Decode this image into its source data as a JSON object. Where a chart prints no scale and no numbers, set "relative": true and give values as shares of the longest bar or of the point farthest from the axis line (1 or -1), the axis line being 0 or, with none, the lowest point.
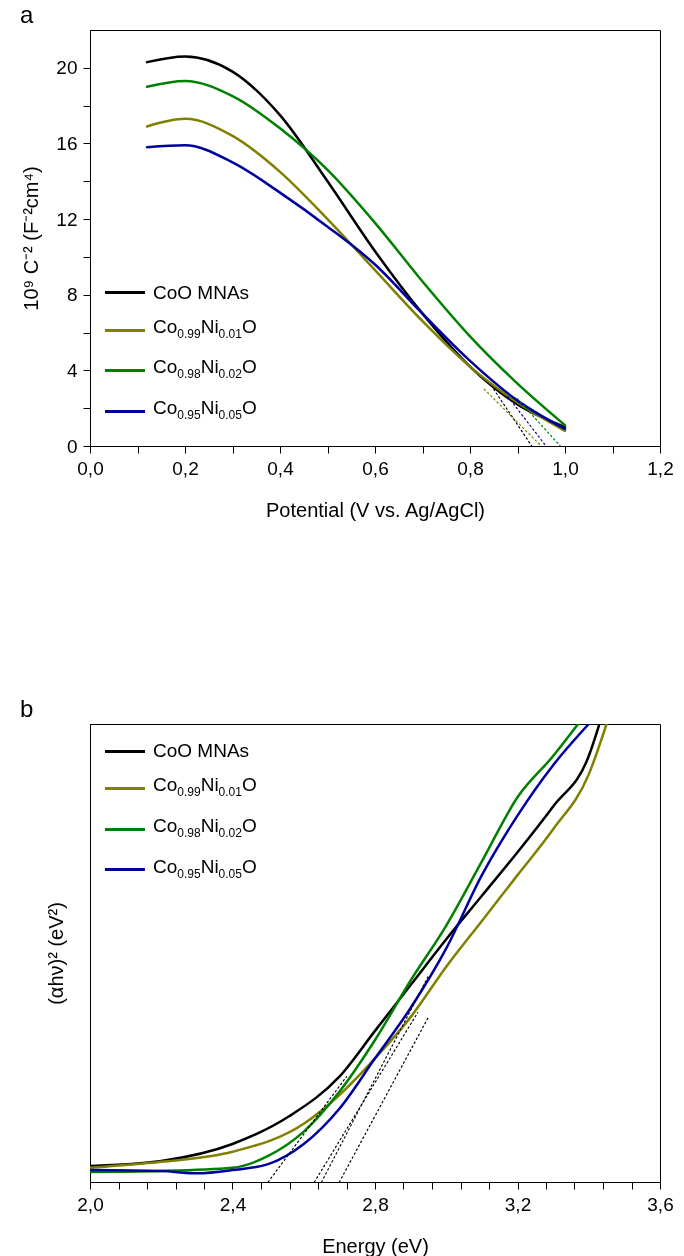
{
  "chart_data": [
    {
      "type": "line",
      "title": "a",
      "xlabel": "Potential  (V vs. Ag/AgCl)",
      "ylabel": "10⁹ C⁻² (F⁻²cm⁴)",
      "xlim": [
        0,
        1.2
      ],
      "ylim": [
        0,
        22
      ],
      "xticks": [
        {
          "value": 0,
          "label": "0,0"
        },
        {
          "value": 0.1,
          "label": null
        },
        {
          "value": 0.2,
          "label": "0,2"
        },
        {
          "value": 0.3,
          "label": null
        },
        {
          "value": 0.4,
          "label": "0,4"
        },
        {
          "value": 0.5,
          "label": null
        },
        {
          "value": 0.6,
          "label": "0,6"
        },
        {
          "value": 0.7,
          "label": null
        },
        {
          "value": 0.8,
          "label": "0,8"
        },
        {
          "value": 0.9,
          "label": null
        },
        {
          "value": 1,
          "label": "1,0"
        },
        {
          "value": 1.1,
          "label": null
        },
        {
          "value": 1.2,
          "label": "1,2"
        }
      ],
      "yticks": [
        0,
        {
          "value": 2,
          "label": null
        },
        4,
        {
          "value": 6,
          "label": null
        },
        8,
        {
          "value": 10,
          "label": null
        },
        12,
        {
          "value": 14,
          "label": null
        },
        16,
        {
          "value": 18,
          "label": null
        },
        20
      ],
      "legend": "bottom left",
      "series": [
        {
          "name": "CoO MNAs",
          "color": "#000000",
          "x": [
            0.12,
            0.2,
            0.3,
            0.4,
            0.5,
            0.6,
            0.7,
            0.8,
            0.9,
            1.0
          ],
          "values": [
            20.3,
            20.6,
            19.8,
            17.5,
            14.0,
            10.3,
            7.0,
            4.2,
            2.2,
            1.0
          ]
        },
        {
          "name": "Co$_{0.99}$Ni$_{0.01}$O",
          "color": "#808000",
          "x": [
            0.12,
            0.2,
            0.3,
            0.4,
            0.5,
            0.6,
            0.7,
            0.8,
            0.9,
            1.0
          ],
          "values": [
            16.9,
            17.3,
            16.4,
            14.5,
            12.0,
            9.3,
            6.6,
            4.2,
            2.3,
            0.8
          ]
        },
        {
          "name": "Co$_{0.98}$Ni$_{0.02}$O",
          "color": "#008000",
          "x": [
            0.12,
            0.2,
            0.3,
            0.4,
            0.5,
            0.6,
            0.7,
            0.8,
            0.9,
            1.0
          ],
          "values": [
            19.0,
            19.3,
            18.5,
            16.8,
            14.6,
            11.8,
            8.7,
            5.8,
            3.3,
            1.1
          ]
        },
        {
          "name": "Co$_{0.95}$Ni$_{0.05}$O",
          "color": "#0000a0",
          "x": [
            0.12,
            0.2,
            0.3,
            0.4,
            0.5,
            0.6,
            0.7,
            0.8,
            0.9,
            1.0
          ],
          "values": [
            15.8,
            15.9,
            15.0,
            13.4,
            11.6,
            9.6,
            7.0,
            4.5,
            2.4,
            0.9
          ]
        },
        {
          "type": "line",
          "color": "#000000",
          "line_style": "dotted",
          "x": [
            0.85,
            0.93
          ],
          "values": [
            3,
            0
          ]
        },
        {
          "type": "line",
          "color": "#808000",
          "line_style": "dotted",
          "x": [
            0.83,
            0.95
          ],
          "values": [
            3,
            0
          ]
        },
        {
          "type": "line",
          "color": "#008000",
          "line_style": "dotted",
          "x": [
            0.9,
            0.99
          ],
          "values": [
            2.5,
            0
          ]
        },
        {
          "type": "line",
          "color": "#0000a0",
          "line_style": "dotted",
          "x": [
            0.88,
            0.96
          ],
          "values": [
            2.6,
            0
          ]
        }
      ]
    },
    {
      "type": "line",
      "title": "b",
      "xlabel": "Energy (eV)",
      "ylabel": "(αhν)² (eV²)",
      "relative": true,
      "xlim": [
        2.0,
        3.6
      ],
      "xticks": [
        {
          "value": 2.0,
          "label": "2,0"
        },
        {
          "value": 2.08,
          "label": null
        },
        {
          "value": 2.16,
          "label": null
        },
        {
          "value": 2.24,
          "label": null
        },
        {
          "value": 2.32,
          "label": null
        },
        {
          "value": 2.4,
          "label": "2,4"
        },
        {
          "value": 2.48,
          "label": null
        },
        {
          "value": 2.56,
          "label": null
        },
        {
          "value": 2.64,
          "label": null
        },
        {
          "value": 2.72,
          "label": null
        },
        {
          "value": 2.8,
          "label": "2,8"
        },
        {
          "value": 2.88,
          "label": null
        },
        {
          "value": 2.96,
          "label": null
        },
        {
          "value": 3.04,
          "label": null
        },
        {
          "value": 3.12,
          "label": null
        },
        {
          "value": 3.2,
          "label": "3,2"
        },
        {
          "value": 3.28,
          "label": null
        },
        {
          "value": 3.36,
          "label": null
        },
        {
          "value": 3.44,
          "label": null
        },
        {
          "value": 3.52,
          "label": null
        },
        {
          "value": 3.6,
          "label": "3,6"
        }
      ],
      "legend": "top left",
      "series": [
        {
          "name": "CoO MNAs",
          "color": "#000000",
          "x": [
            2.0,
            2.2,
            2.4,
            2.56,
            2.7,
            2.8,
            2.9,
            3.0,
            3.1,
            3.2,
            3.3,
            3.4,
            3.43
          ],
          "values": [
            0.035,
            0.046,
            0.083,
            0.144,
            0.23,
            0.33,
            0.43,
            0.53,
            0.625,
            0.72,
            0.82,
            0.93,
            1.0
          ]
        },
        {
          "name": "Co$_{0.99}$Ni$_{0.01}$O",
          "color": "#808000",
          "x": [
            2.0,
            2.2,
            2.4,
            2.6,
            2.7,
            2.8,
            2.9,
            3.0,
            3.1,
            3.2,
            3.3,
            3.4,
            3.45
          ],
          "values": [
            0.031,
            0.044,
            0.066,
            0.127,
            0.19,
            0.27,
            0.36,
            0.47,
            0.57,
            0.67,
            0.77,
            0.89,
            1.0
          ]
        },
        {
          "name": "Co$_{0.98}$Ni$_{0.02}$O",
          "color": "#008000",
          "x": [
            2.0,
            2.2,
            2.4,
            2.5,
            2.6,
            2.7,
            2.8,
            2.9,
            3.0,
            3.1,
            3.2,
            3.3,
            3.37
          ],
          "values": [
            0.022,
            0.024,
            0.031,
            0.057,
            0.11,
            0.197,
            0.31,
            0.44,
            0.56,
            0.7,
            0.84,
            0.93,
            1.0
          ]
        },
        {
          "name": "Co$_{0.95}$Ni$_{0.05}$O",
          "color": "#0000a0",
          "x": [
            2.0,
            2.2,
            2.3,
            2.4,
            2.5,
            2.6,
            2.7,
            2.8,
            2.9,
            3.0,
            3.1,
            3.2,
            3.3,
            3.4
          ],
          "values": [
            0.026,
            0.024,
            0.019,
            0.026,
            0.039,
            0.083,
            0.16,
            0.27,
            0.38,
            0.51,
            0.67,
            0.8,
            0.91,
            1.0
          ]
        },
        {
          "type": "line",
          "color": "#000000",
          "line_style": "dotted",
          "x": [
            2.5,
            2.72
          ],
          "values": [
            0,
            0.23
          ]
        },
        {
          "type": "line",
          "color": "#000000",
          "line_style": "dotted",
          "x": [
            2.63,
            2.92
          ],
          "values": [
            0,
            0.37
          ]
        },
        {
          "type": "line",
          "color": "#000000",
          "line_style": "dotted",
          "x": [
            2.65,
            2.95
          ],
          "values": [
            0,
            0.45
          ]
        },
        {
          "type": "line",
          "color": "#000000",
          "line_style": "dotted",
          "x": [
            2.7,
            2.95
          ],
          "values": [
            0,
            0.36
          ]
        }
      ]
    }
  ]
}
